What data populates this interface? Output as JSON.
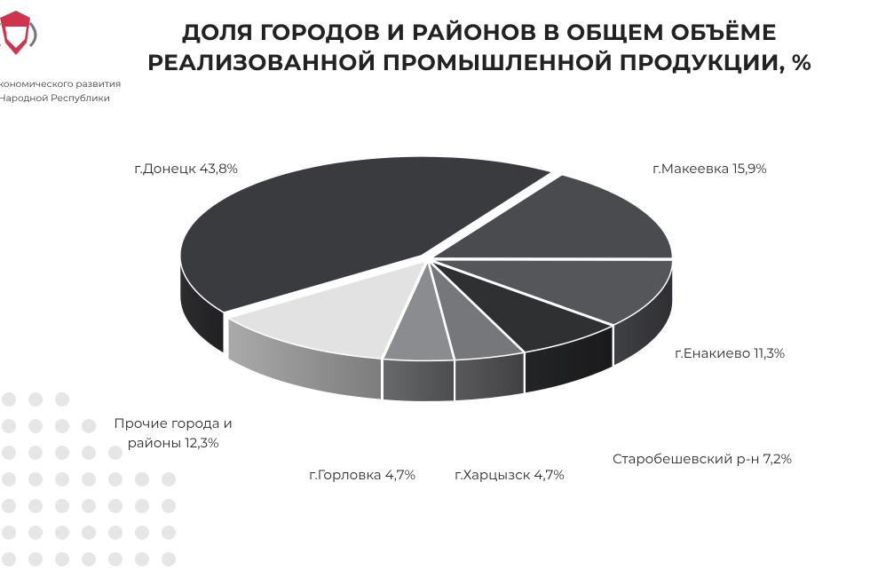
{
  "logo_text": [
    "кономического развития",
    "Народной Республики"
  ],
  "chart_data": {
    "type": "pie",
    "title": [
      "ДОЛЯ ГОРОДОВ И РАЙОНОВ В ОБЩЕМ ОБЪЁМЕ",
      "РЕАЛИЗОВАННОЙ ПРОМЫШЛЕННОЙ ПРОДУКЦИИ, %"
    ],
    "categories": [
      "г.Донецк",
      "г.Макеевка",
      "г.Енакиево",
      "Старобешевский р-н",
      "г.Харцызск",
      "г.Горловка",
      "Прочие города и районы"
    ],
    "values": [
      43.8,
      15.9,
      11.3,
      7.2,
      4.7,
      4.7,
      12.3
    ],
    "value_labels": [
      "43,8%",
      "15,9%",
      "11,3%",
      "7,2%",
      "4,7%",
      "4,7%",
      "12,3%"
    ],
    "colors": [
      "#3a3b3e",
      "#4a4b4f",
      "#55565a",
      "#2f3032",
      "#76777a",
      "#8b8c8f",
      "#e2e2e2"
    ]
  }
}
